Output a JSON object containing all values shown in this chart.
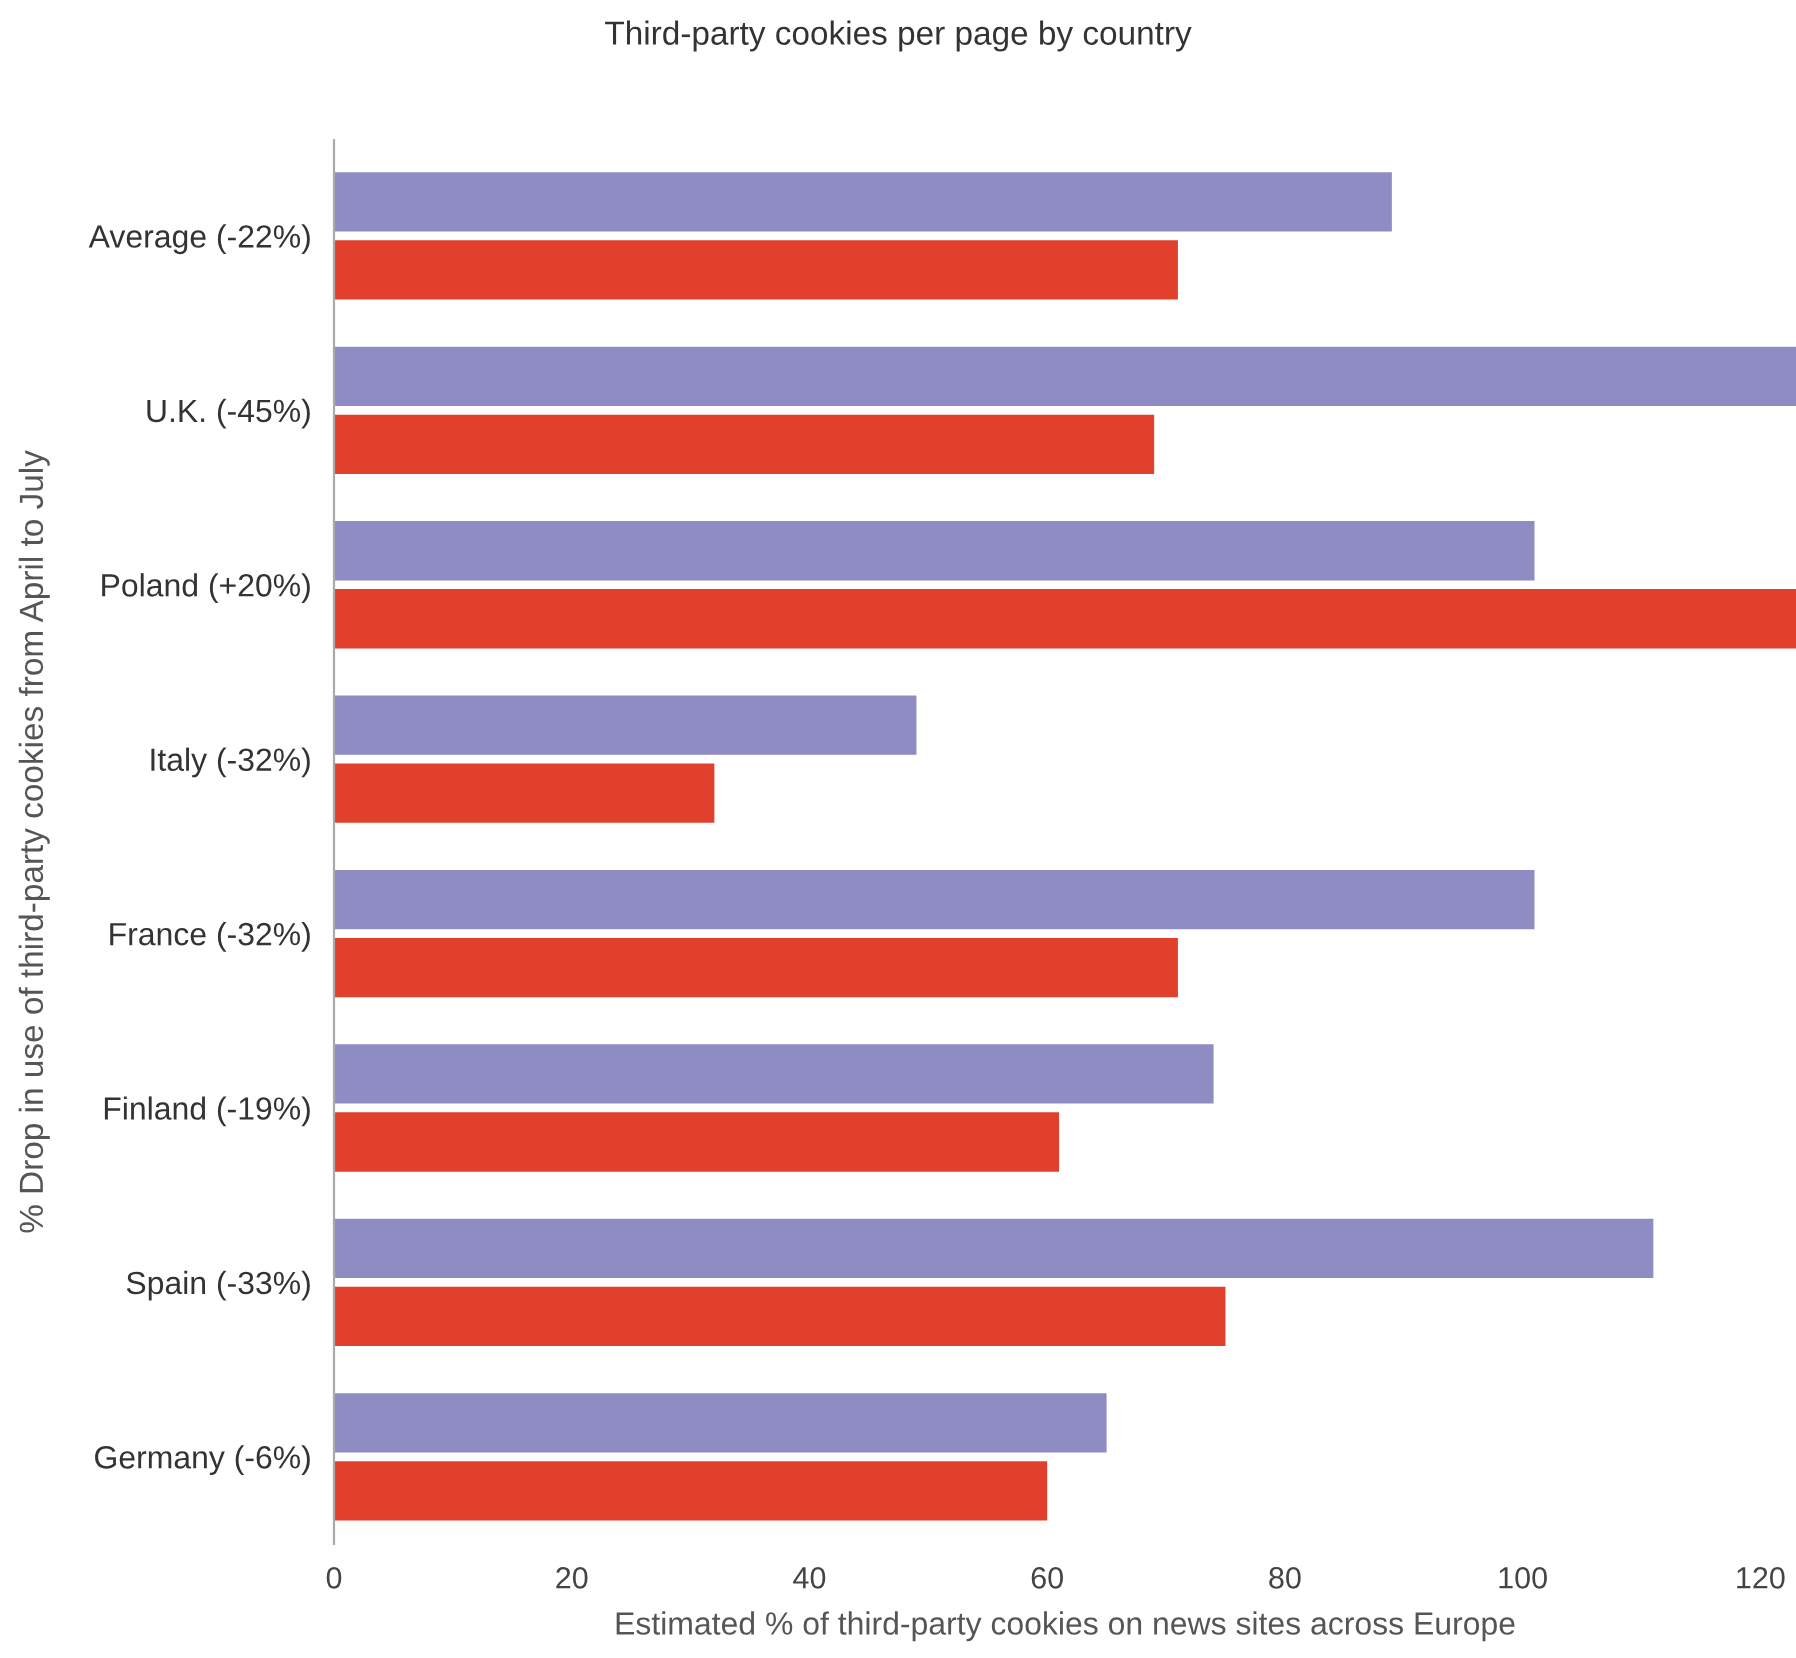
{
  "chart_data": {
    "type": "bar",
    "orientation": "horizontal",
    "title": "Third-party cookies per page by country",
    "xlabel": "Estimated % of third-party cookies on news sites across Europe",
    "ylabel": "% Drop in use of third-party cookies from April to July",
    "categories": [
      "Average (-22%)",
      "U.K. (-45%)",
      "Poland (+20%)",
      "Italy (-32%)",
      "France (-32%)",
      "Finland (-19%)",
      "Spain (-33%)",
      "Germany (-6%)"
    ],
    "series": [
      {
        "color": "#8f8cc4",
        "values": [
          89,
          123,
          101,
          49,
          101,
          74,
          111,
          65
        ]
      },
      {
        "color": "#e0402c",
        "values": [
          71,
          69,
          123,
          32,
          71,
          61,
          75,
          60
        ]
      }
    ],
    "xlim": [
      0,
      123
    ],
    "xticks": [
      0,
      20,
      40,
      60,
      80,
      100,
      120
    ],
    "grid": false,
    "legend": false
  }
}
